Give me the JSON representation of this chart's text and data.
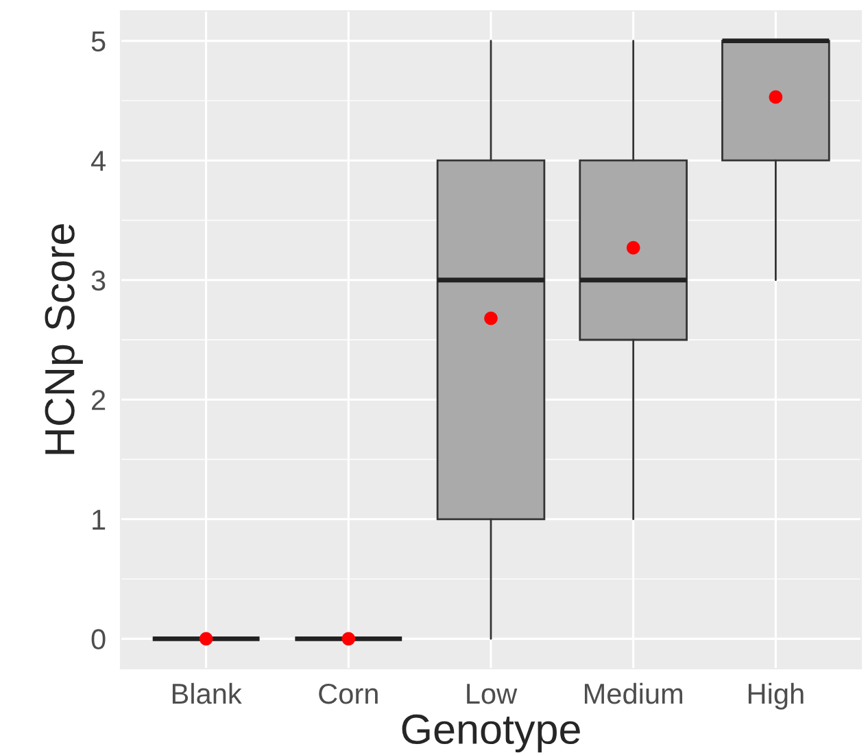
{
  "chart_data": {
    "type": "box",
    "xlabel": "Genotype",
    "ylabel": "HCNp Score",
    "categories": [
      "Blank",
      "Corn",
      "Low",
      "Medium",
      "High"
    ],
    "ylim": [
      -0.25,
      5.25
    ],
    "yticks": [
      0,
      1,
      2,
      3,
      4,
      5
    ],
    "grid": true,
    "legend": false,
    "series": [
      {
        "type": "box",
        "color": "#aaaaaa",
        "boxes": [
          {
            "low": 0,
            "q1": 0,
            "median": 0,
            "q3": 0,
            "high": 0
          },
          {
            "low": 0,
            "q1": 0,
            "median": 0,
            "q3": 0,
            "high": 0
          },
          {
            "low": 0,
            "q1": 1,
            "median": 3,
            "q3": 4,
            "high": 5
          },
          {
            "low": 1,
            "q1": 2.5,
            "median": 3,
            "q3": 4,
            "high": 5
          },
          {
            "low": 3,
            "q1": 4,
            "median": 5,
            "q3": 5,
            "high": 5
          }
        ]
      },
      {
        "type": "scatter",
        "color": "#ff0000",
        "marker": "circle",
        "x": [
          "Blank",
          "Corn",
          "Low",
          "Medium",
          "High"
        ],
        "values": [
          0,
          0,
          2.68,
          3.27,
          4.53
        ]
      }
    ]
  }
}
